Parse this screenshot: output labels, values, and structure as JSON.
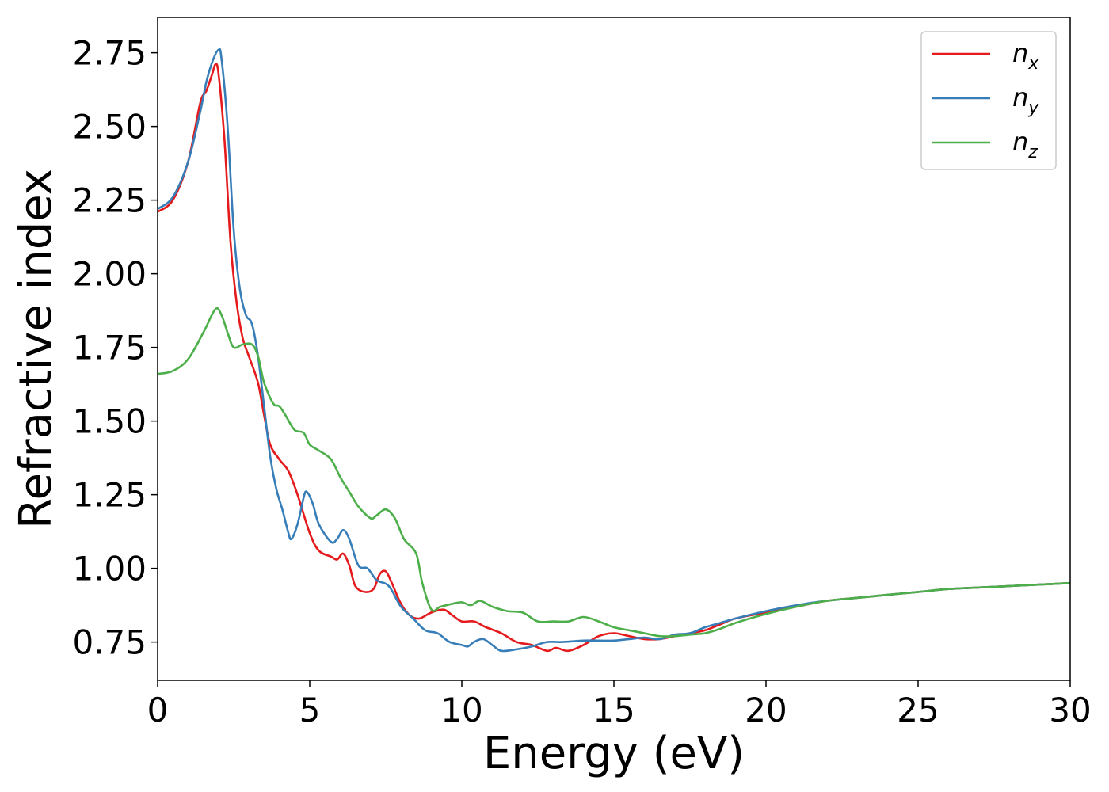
{
  "chart_data": {
    "type": "line",
    "xlabel": "Energy (eV)",
    "ylabel": "Refractive index",
    "xlim": [
      0,
      30
    ],
    "ylim": [
      0.62,
      2.87
    ],
    "xticks": [
      0,
      5,
      10,
      15,
      20,
      25,
      30
    ],
    "xtick_labels": [
      "0",
      "5",
      "10",
      "15",
      "20",
      "25",
      "30"
    ],
    "yticks": [
      0.75,
      1.0,
      1.25,
      1.5,
      1.75,
      2.0,
      2.25,
      2.5,
      2.75
    ],
    "ytick_labels": [
      "0.75",
      "1.00",
      "1.25",
      "1.50",
      "1.75",
      "2.00",
      "2.25",
      "2.50",
      "2.75"
    ],
    "grid": false,
    "legend_position": "top-right",
    "series": [
      {
        "name": "n",
        "subscript": "x",
        "color": "#e41a1c",
        "points": [
          [
            0,
            2.21
          ],
          [
            0.5,
            2.25
          ],
          [
            1.0,
            2.38
          ],
          [
            1.4,
            2.58
          ],
          [
            1.6,
            2.62
          ],
          [
            1.8,
            2.68
          ],
          [
            1.9,
            2.71
          ],
          [
            2.0,
            2.68
          ],
          [
            2.2,
            2.45
          ],
          [
            2.4,
            2.1
          ],
          [
            2.6,
            1.9
          ],
          [
            2.8,
            1.78
          ],
          [
            3.0,
            1.72
          ],
          [
            3.3,
            1.63
          ],
          [
            3.5,
            1.52
          ],
          [
            3.7,
            1.42
          ],
          [
            4.0,
            1.37
          ],
          [
            4.3,
            1.33
          ],
          [
            4.6,
            1.25
          ],
          [
            5.0,
            1.12
          ],
          [
            5.3,
            1.06
          ],
          [
            5.7,
            1.04
          ],
          [
            5.9,
            1.03
          ],
          [
            6.1,
            1.05
          ],
          [
            6.3,
            1.01
          ],
          [
            6.5,
            0.94
          ],
          [
            6.8,
            0.92
          ],
          [
            7.1,
            0.93
          ],
          [
            7.3,
            0.98
          ],
          [
            7.5,
            0.99
          ],
          [
            7.7,
            0.95
          ],
          [
            8.0,
            0.88
          ],
          [
            8.3,
            0.84
          ],
          [
            8.6,
            0.83
          ],
          [
            9.0,
            0.85
          ],
          [
            9.4,
            0.86
          ],
          [
            9.7,
            0.84
          ],
          [
            10.0,
            0.82
          ],
          [
            10.4,
            0.82
          ],
          [
            10.8,
            0.8
          ],
          [
            11.3,
            0.78
          ],
          [
            11.8,
            0.75
          ],
          [
            12.3,
            0.74
          ],
          [
            12.8,
            0.72
          ],
          [
            13.1,
            0.73
          ],
          [
            13.5,
            0.72
          ],
          [
            14.0,
            0.74
          ],
          [
            14.5,
            0.77
          ],
          [
            15.0,
            0.78
          ],
          [
            15.5,
            0.77
          ],
          [
            16.0,
            0.76
          ],
          [
            16.5,
            0.76
          ],
          [
            17.0,
            0.77
          ],
          [
            17.5,
            0.78
          ],
          [
            18.0,
            0.79
          ],
          [
            18.5,
            0.81
          ],
          [
            19.0,
            0.83
          ],
          [
            20.0,
            0.85
          ],
          [
            21.0,
            0.87
          ],
          [
            22.0,
            0.89
          ],
          [
            23.0,
            0.9
          ],
          [
            24.0,
            0.91
          ],
          [
            25.0,
            0.92
          ],
          [
            26.0,
            0.93
          ],
          [
            27.0,
            0.935
          ],
          [
            28.0,
            0.94
          ],
          [
            29.0,
            0.945
          ],
          [
            30.0,
            0.95
          ]
        ]
      },
      {
        "name": "n",
        "subscript": "y",
        "color": "#377eb8",
        "points": [
          [
            0,
            2.22
          ],
          [
            0.5,
            2.26
          ],
          [
            1.0,
            2.38
          ],
          [
            1.4,
            2.55
          ],
          [
            1.6,
            2.65
          ],
          [
            1.8,
            2.72
          ],
          [
            2.0,
            2.76
          ],
          [
            2.1,
            2.73
          ],
          [
            2.3,
            2.5
          ],
          [
            2.5,
            2.15
          ],
          [
            2.7,
            1.95
          ],
          [
            2.9,
            1.86
          ],
          [
            3.1,
            1.83
          ],
          [
            3.3,
            1.72
          ],
          [
            3.5,
            1.55
          ],
          [
            3.7,
            1.38
          ],
          [
            3.9,
            1.27
          ],
          [
            4.1,
            1.2
          ],
          [
            4.3,
            1.12
          ],
          [
            4.4,
            1.1
          ],
          [
            4.6,
            1.15
          ],
          [
            4.8,
            1.24
          ],
          [
            4.9,
            1.26
          ],
          [
            5.1,
            1.22
          ],
          [
            5.3,
            1.15
          ],
          [
            5.7,
            1.09
          ],
          [
            5.9,
            1.1
          ],
          [
            6.1,
            1.13
          ],
          [
            6.3,
            1.1
          ],
          [
            6.6,
            1.01
          ],
          [
            6.9,
            1.0
          ],
          [
            7.2,
            0.96
          ],
          [
            7.6,
            0.94
          ],
          [
            8.0,
            0.87
          ],
          [
            8.4,
            0.83
          ],
          [
            8.8,
            0.79
          ],
          [
            9.2,
            0.78
          ],
          [
            9.6,
            0.75
          ],
          [
            10.0,
            0.74
          ],
          [
            10.2,
            0.735
          ],
          [
            10.4,
            0.75
          ],
          [
            10.7,
            0.76
          ],
          [
            11.0,
            0.74
          ],
          [
            11.3,
            0.72
          ],
          [
            11.8,
            0.725
          ],
          [
            12.3,
            0.735
          ],
          [
            12.8,
            0.75
          ],
          [
            13.3,
            0.75
          ],
          [
            14.0,
            0.755
          ],
          [
            14.5,
            0.755
          ],
          [
            15.0,
            0.755
          ],
          [
            15.5,
            0.76
          ],
          [
            16.0,
            0.765
          ],
          [
            16.5,
            0.76
          ],
          [
            17.0,
            0.775
          ],
          [
            17.5,
            0.78
          ],
          [
            18.0,
            0.8
          ],
          [
            18.5,
            0.815
          ],
          [
            19.0,
            0.83
          ],
          [
            20.0,
            0.855
          ],
          [
            21.0,
            0.875
          ],
          [
            22.0,
            0.89
          ],
          [
            23.0,
            0.9
          ],
          [
            24.0,
            0.91
          ],
          [
            25.0,
            0.92
          ],
          [
            26.0,
            0.93
          ],
          [
            27.0,
            0.935
          ],
          [
            28.0,
            0.94
          ],
          [
            29.0,
            0.945
          ],
          [
            30.0,
            0.95
          ]
        ]
      },
      {
        "name": "n",
        "subscript": "z",
        "color": "#4daf4a",
        "points": [
          [
            0,
            1.66
          ],
          [
            0.5,
            1.67
          ],
          [
            1.0,
            1.71
          ],
          [
            1.5,
            1.8
          ],
          [
            1.9,
            1.88
          ],
          [
            2.1,
            1.86
          ],
          [
            2.3,
            1.8
          ],
          [
            2.5,
            1.75
          ],
          [
            2.8,
            1.76
          ],
          [
            3.1,
            1.76
          ],
          [
            3.3,
            1.72
          ],
          [
            3.5,
            1.63
          ],
          [
            3.8,
            1.56
          ],
          [
            4.0,
            1.55
          ],
          [
            4.2,
            1.52
          ],
          [
            4.5,
            1.47
          ],
          [
            4.8,
            1.46
          ],
          [
            5.0,
            1.42
          ],
          [
            5.3,
            1.4
          ],
          [
            5.7,
            1.37
          ],
          [
            6.0,
            1.31
          ],
          [
            6.3,
            1.26
          ],
          [
            6.6,
            1.21
          ],
          [
            7.0,
            1.17
          ],
          [
            7.2,
            1.18
          ],
          [
            7.5,
            1.2
          ],
          [
            7.8,
            1.17
          ],
          [
            8.1,
            1.1
          ],
          [
            8.5,
            1.05
          ],
          [
            8.7,
            0.95
          ],
          [
            9.0,
            0.86
          ],
          [
            9.3,
            0.87
          ],
          [
            9.7,
            0.88
          ],
          [
            10.0,
            0.885
          ],
          [
            10.3,
            0.875
          ],
          [
            10.6,
            0.89
          ],
          [
            11.0,
            0.87
          ],
          [
            11.5,
            0.855
          ],
          [
            12.0,
            0.85
          ],
          [
            12.5,
            0.82
          ],
          [
            13.0,
            0.82
          ],
          [
            13.5,
            0.82
          ],
          [
            14.0,
            0.835
          ],
          [
            14.5,
            0.82
          ],
          [
            15.0,
            0.8
          ],
          [
            15.5,
            0.79
          ],
          [
            16.0,
            0.78
          ],
          [
            16.5,
            0.77
          ],
          [
            17.0,
            0.77
          ],
          [
            17.5,
            0.775
          ],
          [
            18.0,
            0.78
          ],
          [
            18.5,
            0.795
          ],
          [
            19.0,
            0.815
          ],
          [
            20.0,
            0.845
          ],
          [
            21.0,
            0.87
          ],
          [
            22.0,
            0.89
          ],
          [
            23.0,
            0.9
          ],
          [
            24.0,
            0.91
          ],
          [
            25.0,
            0.92
          ],
          [
            26.0,
            0.93
          ],
          [
            27.0,
            0.935
          ],
          [
            28.0,
            0.94
          ],
          [
            29.0,
            0.945
          ],
          [
            30.0,
            0.95
          ]
        ]
      }
    ]
  }
}
